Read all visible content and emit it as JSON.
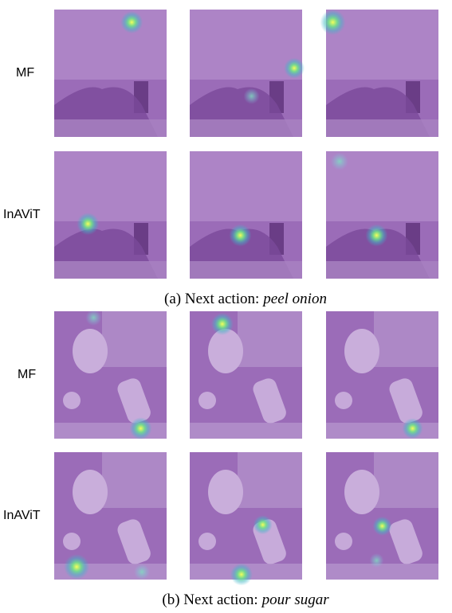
{
  "panels": [
    {
      "rows": [
        {
          "label": "MF"
        },
        {
          "label": "InAViT"
        }
      ],
      "caption": {
        "prefix": "(a) Next action:",
        "action": "peel onion"
      }
    },
    {
      "rows": [
        {
          "label": "MF"
        },
        {
          "label": "InAViT"
        }
      ],
      "caption": {
        "prefix": "(b) Next action:",
        "action": "pour sugar"
      }
    }
  ]
}
